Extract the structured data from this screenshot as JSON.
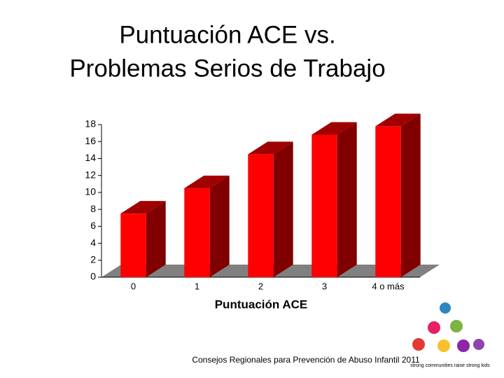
{
  "chart_data": {
    "type": "bar3d",
    "title": [
      "Puntuación ACE vs.",
      "Problemas Serios de Trabajo"
    ],
    "x_label": "Puntuación ACE",
    "categories": [
      "0",
      "1",
      "2",
      "3",
      "4 o más"
    ],
    "values": [
      7.5,
      10.5,
      14.5,
      16.8,
      17.8
    ],
    "color": "#ff0000",
    "side_color": "#800000",
    "top_color": "#a00000",
    "floor_color": "#808080",
    "ylim": [
      0,
      18
    ],
    "yticks": [
      0,
      2,
      4,
      6,
      8,
      10,
      12,
      14,
      16,
      18
    ]
  },
  "footer": "Consejos Regionales para Prevención de Abuso Infantil 2011",
  "logo_text": "strong communities raise strong kids"
}
